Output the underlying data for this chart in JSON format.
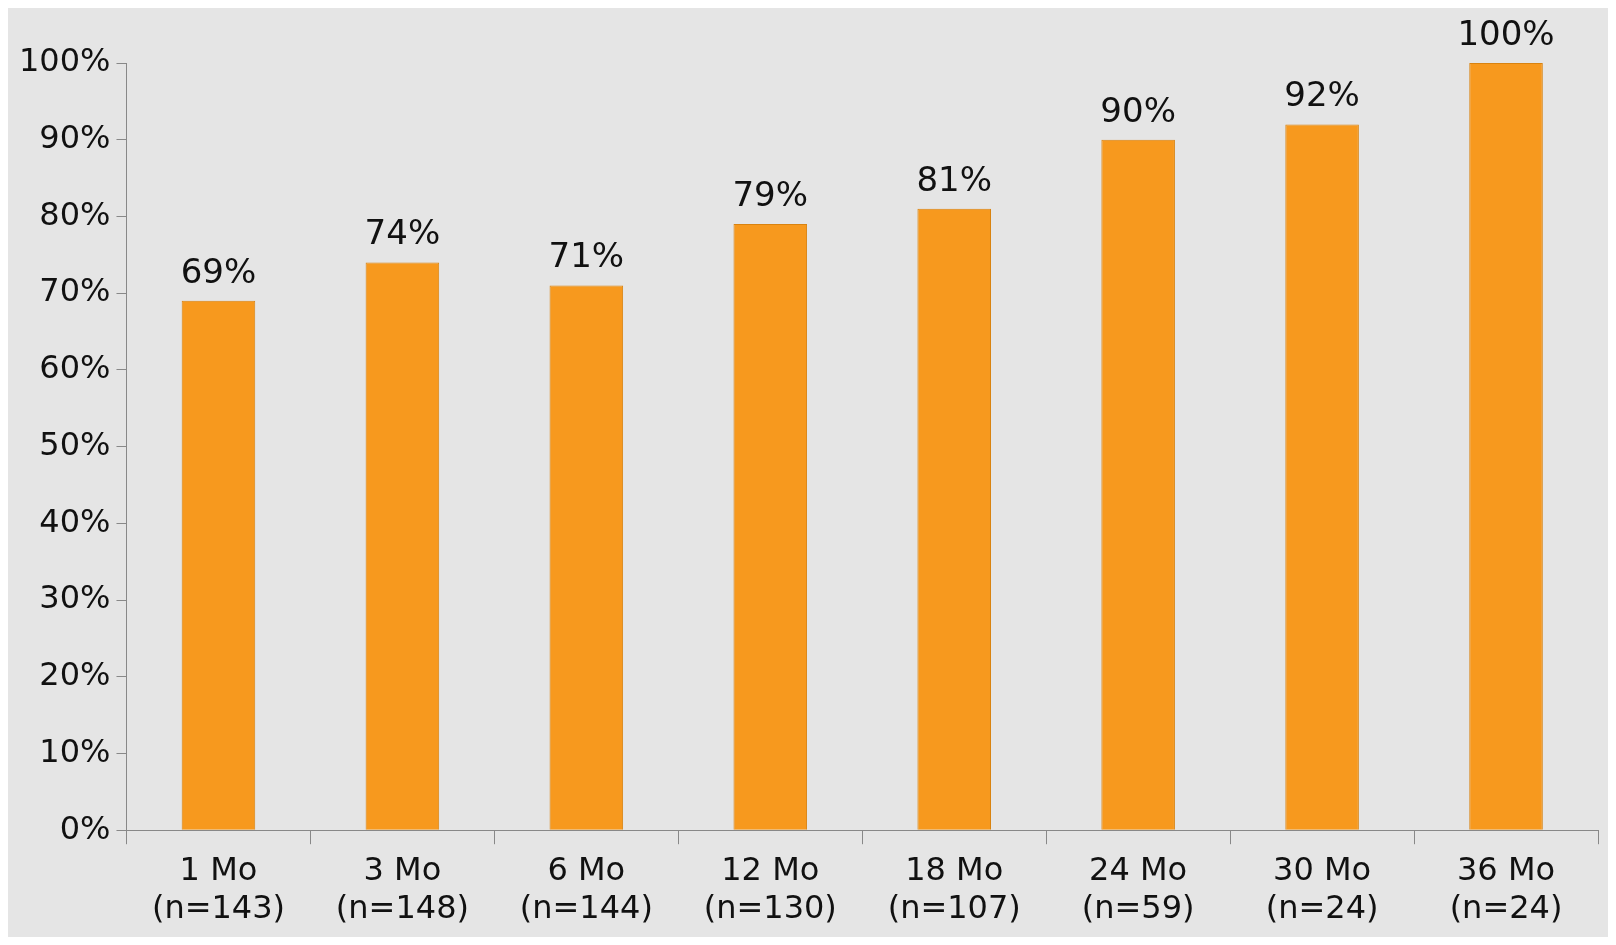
{
  "chart_data": {
    "type": "bar",
    "categories": [
      "1 Mo\n(n=143)",
      "3 Mo\n(n=148)",
      "6 Mo\n(n=144)",
      "12 Mo\n(n=130)",
      "18 Mo\n(n=107)",
      "24 Mo\n(n=59)",
      "30 Mo\n(n=24)",
      "36 Mo\n(n=24)"
    ],
    "values": [
      69,
      74,
      71,
      79,
      81,
      90,
      92,
      100
    ],
    "value_labels": [
      "69%",
      "74%",
      "71%",
      "79%",
      "81%",
      "90%",
      "92%",
      "100%"
    ],
    "color": "#f7991e",
    "ylim": [
      0,
      100
    ],
    "yticks": [
      {
        "value": 0,
        "label": "0%"
      },
      {
        "value": 10,
        "label": "10%"
      },
      {
        "value": 20,
        "label": "20%"
      },
      {
        "value": 30,
        "label": "30%"
      },
      {
        "value": 40,
        "label": "40%"
      },
      {
        "value": 50,
        "label": "50%"
      },
      {
        "value": 60,
        "label": "60%"
      },
      {
        "value": 70,
        "label": "70%"
      },
      {
        "value": 80,
        "label": "80%"
      },
      {
        "value": 90,
        "label": "90%"
      },
      {
        "value": 100,
        "label": "100%"
      }
    ],
    "grid": false,
    "legend": false
  }
}
